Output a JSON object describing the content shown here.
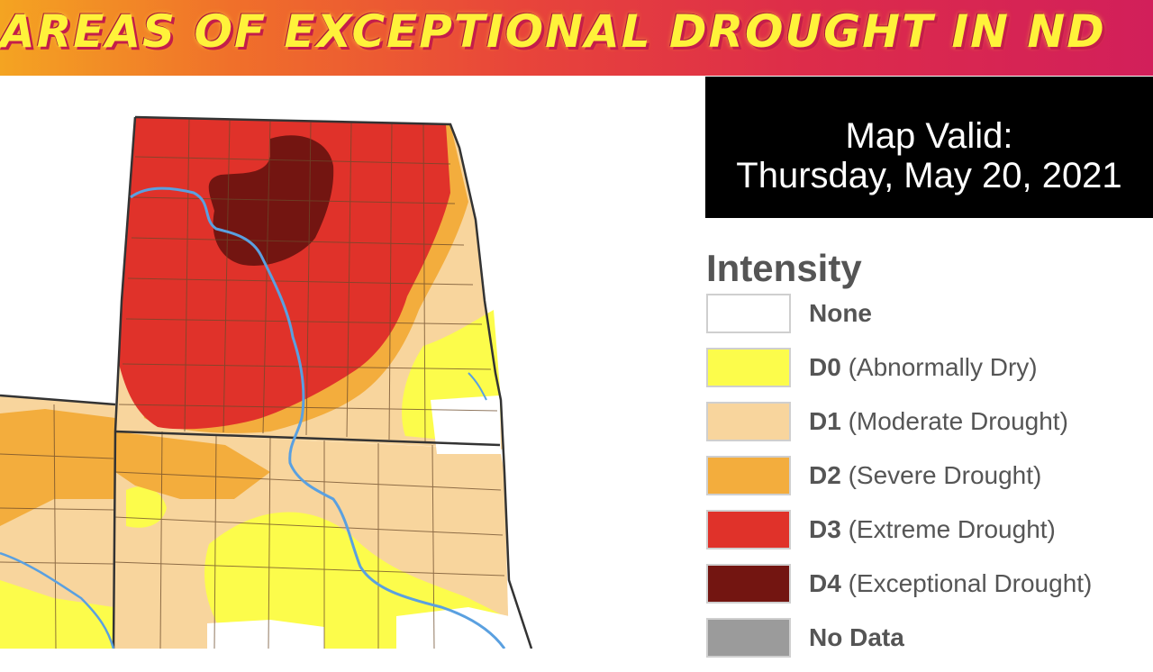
{
  "banner": {
    "title": "AREAS OF EXCEPTIONAL DROUGHT IN ND",
    "gradient_start": "#f4a422",
    "gradient_end": "#d21f5a",
    "text_color": "#fff23a"
  },
  "map_valid": {
    "line1": "Map Valid:",
    "line2": "Thursday, May 20, 2021"
  },
  "legend": {
    "title": "Intensity",
    "items": [
      {
        "code": "None",
        "desc": "",
        "color": "#ffffff"
      },
      {
        "code": "D0",
        "desc": "(Abnormally Dry)",
        "color": "#fcfc4b"
      },
      {
        "code": "D1",
        "desc": "(Moderate Drought)",
        "color": "#f8d59d"
      },
      {
        "code": "D2",
        "desc": "(Severe Drought)",
        "color": "#f3ad3d"
      },
      {
        "code": "D3",
        "desc": "(Extreme Drought)",
        "color": "#e0322a"
      },
      {
        "code": "D4",
        "desc": "(Exceptional Drought)",
        "color": "#731511"
      },
      {
        "code": "No Data",
        "desc": "",
        "color": "#9b9b9b"
      }
    ]
  },
  "map": {
    "river_color": "#5aa0e0",
    "boundary_color": "#333333",
    "county_line_color": "#6b4a2a"
  }
}
